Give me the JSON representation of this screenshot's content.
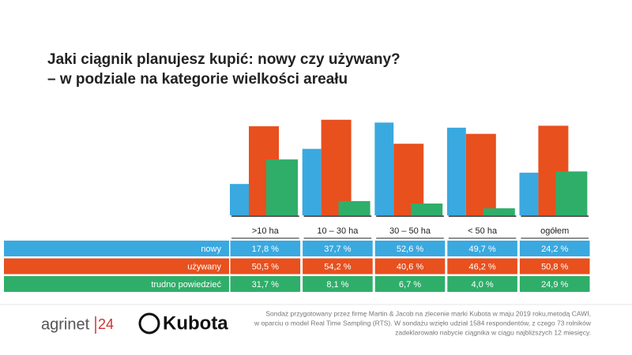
{
  "chart_data": {
    "type": "bar",
    "title": "Jaki ciągnik planujesz kupić: nowy czy używany?",
    "subtitle": "– w podziale na kategorie wielkości areału",
    "categories": [
      ">10 ha",
      "10 – 30 ha",
      "30 – 50 ha",
      "< 50 ha",
      "ogółem"
    ],
    "ylim": [
      0,
      55
    ],
    "series": [
      {
        "name": "nowy",
        "color": "#3aa9e0",
        "values": [
          17.8,
          37.7,
          52.6,
          49.7,
          24.2
        ],
        "value_labels": [
          "17,8 %",
          "37,7 %",
          "52,6 %",
          "49,7 %",
          "24,2 %"
        ]
      },
      {
        "name": "używany",
        "color": "#e8501e",
        "values": [
          50.5,
          54.2,
          40.6,
          46.2,
          50.8
        ],
        "value_labels": [
          "50,5 %",
          "54,2 %",
          "40,6 %",
          "46,2 %",
          "50,8 %"
        ]
      },
      {
        "name": "trudno powiedzieć",
        "color": "#2fae6a",
        "values": [
          31.7,
          8.1,
          6.7,
          4.0,
          24.9
        ],
        "value_labels": [
          "31,7 %",
          "8,1 %",
          "6,7 %",
          "4,0 %",
          "24,9 %"
        ]
      }
    ]
  },
  "footer": {
    "logo_agrinet": "agrinet",
    "logo_24": "24",
    "logo_kubota": "Kubota",
    "note": [
      "Sondaż przygotowany przez firmę Martin & Jacob na zlecenie marki Kubota w maju 2019 roku,metodą CAWI,",
      "w oparciu o model Real Time Sampling (RTS). W sondażu wzięło udział 1584 respondentów, z czego 73 rolników",
      "zadeklarowało nabycie ciągnika w ciągu najbliższych 12 miesięcy."
    ]
  }
}
